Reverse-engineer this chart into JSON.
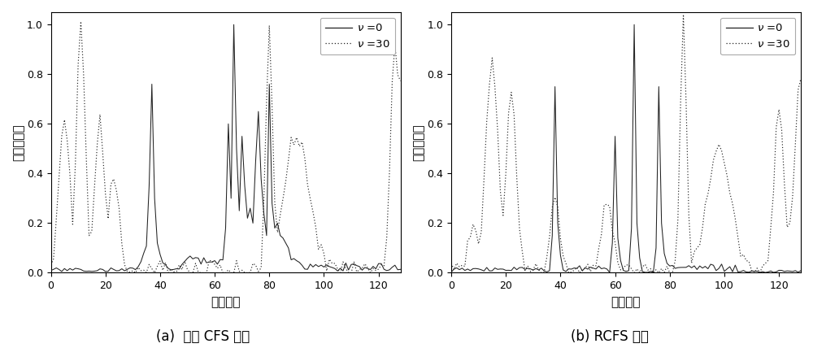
{
  "xlim": [
    0,
    128
  ],
  "ylim": [
    0,
    1.05
  ],
  "xticks": [
    0,
    20,
    40,
    60,
    80,
    100,
    120
  ],
  "yticks": [
    0,
    0.2,
    0.4,
    0.6,
    0.8,
    1
  ],
  "xlabel": "距离单元",
  "ylabel": "归一化幅度",
  "legend_v0": "v =0",
  "legend_v30": "v =30",
  "caption_a": "(a)  常规 CFS 信号",
  "caption_b": "(b) RCFS 信号",
  "line_color": "#222222",
  "bg_color": "#ffffff"
}
